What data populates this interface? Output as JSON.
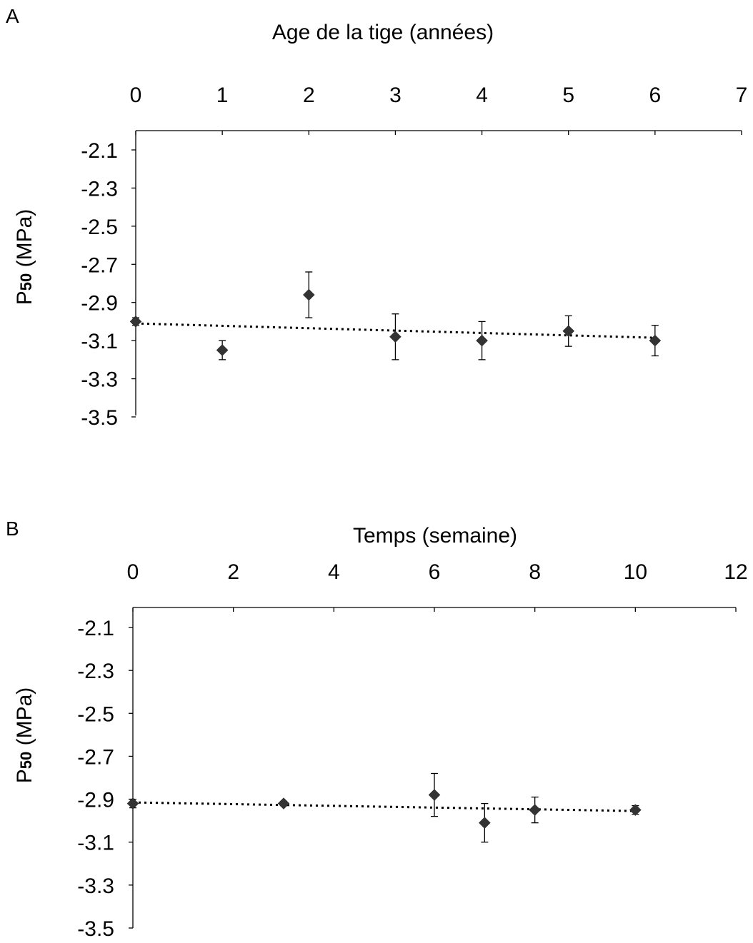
{
  "chart_data": [
    {
      "type": "scatter",
      "panel": "A",
      "xlabel": "Age de la tige (années)",
      "ylabel": "P50 (MPa)",
      "ylabel_main": "P",
      "ylabel_sub": "50",
      "ylabel_rest": " (MPa)",
      "xlim": [
        0,
        7
      ],
      "ylim": [
        -3.5,
        -2.1
      ],
      "x_axis_position": "top",
      "xticks": [
        0,
        1,
        2,
        3,
        4,
        5,
        6,
        7
      ],
      "yticks": [
        -2.1,
        -2.3,
        -2.5,
        -2.7,
        -2.9,
        -3.1,
        -3.3,
        -3.5
      ],
      "xtick_labels": [
        "0",
        "1",
        "2",
        "3",
        "4",
        "5",
        "6",
        "7"
      ],
      "ytick_labels": [
        "-2.1",
        "-2.3",
        "-2.5",
        "-2.7",
        "-2.9",
        "-3.1",
        "-3.3",
        "-3.5"
      ],
      "grid": false,
      "series": [
        {
          "points": [
            {
              "x": 0,
              "y": -3.0,
              "err": 0.02
            },
            {
              "x": 1,
              "y": -3.15,
              "err": 0.05
            },
            {
              "x": 2,
              "y": -2.86,
              "err": 0.12
            },
            {
              "x": 3,
              "y": -3.08,
              "err": 0.12
            },
            {
              "x": 4,
              "y": -3.1,
              "err": 0.1
            },
            {
              "x": 5,
              "y": -3.05,
              "err": 0.08
            },
            {
              "x": 6,
              "y": -3.1,
              "err": 0.08
            }
          ],
          "trendline": {
            "x": [
              0,
              6
            ],
            "y": [
              -3.01,
              -3.085
            ]
          }
        }
      ]
    },
    {
      "type": "scatter",
      "panel": "B",
      "xlabel": "Temps (semaine)",
      "ylabel": "P50 (MPa)",
      "ylabel_main": "P",
      "ylabel_sub": "50",
      "ylabel_rest": " (MPa)",
      "xlim": [
        0,
        12
      ],
      "ylim": [
        -3.5,
        -2.1
      ],
      "x_axis_position": "top",
      "xticks": [
        0,
        2,
        4,
        6,
        8,
        10,
        12
      ],
      "yticks": [
        -2.1,
        -2.3,
        -2.5,
        -2.7,
        -2.9,
        -3.1,
        -3.3,
        -3.5
      ],
      "xtick_labels": [
        "0",
        "2",
        "4",
        "6",
        "8",
        "10",
        "12"
      ],
      "ytick_labels": [
        "-2.1",
        "-2.3",
        "-2.5",
        "-2.7",
        "-2.9",
        "-3.1",
        "-3.3",
        "-3.5"
      ],
      "grid": false,
      "series": [
        {
          "points": [
            {
              "x": 0,
              "y": -2.92,
              "err": 0.02
            },
            {
              "x": 3,
              "y": -2.92,
              "err": 0.01
            },
            {
              "x": 6,
              "y": -2.88,
              "err": 0.1
            },
            {
              "x": 7,
              "y": -3.01,
              "err": 0.09
            },
            {
              "x": 8,
              "y": -2.95,
              "err": 0.06
            },
            {
              "x": 10,
              "y": -2.95,
              "err": 0.02
            }
          ],
          "trendline": {
            "x": [
              0,
              10
            ],
            "y": [
              -2.915,
              -2.955
            ]
          }
        }
      ]
    }
  ]
}
